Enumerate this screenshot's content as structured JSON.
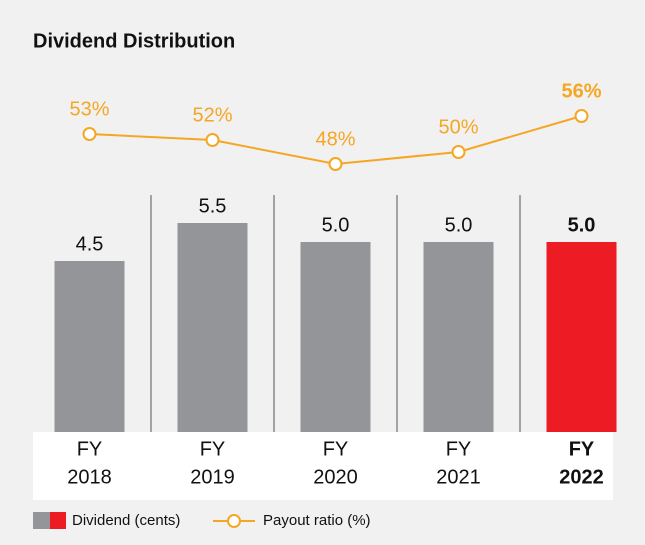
{
  "chart_data": {
    "type": "bar_line",
    "title": "Dividend Distribution",
    "categories": [
      [
        "FY",
        "2018"
      ],
      [
        "FY",
        "2019"
      ],
      [
        "FY",
        "2020"
      ],
      [
        "FY",
        "2021"
      ],
      [
        "FY",
        "2022"
      ]
    ],
    "series": [
      {
        "name": "Dividend (cents)",
        "type": "bar",
        "colors": [
          "#939598",
          "#939598",
          "#939598",
          "#939598",
          "#ed1c24"
        ],
        "values": [
          4.5,
          5.5,
          5.0,
          5.0,
          5.0
        ],
        "value_labels": [
          "4.5",
          "5.5",
          "5.0",
          "5.0",
          "5.0"
        ]
      },
      {
        "name": "Payout ratio (%)",
        "type": "line",
        "color": "#f5a623",
        "values": [
          53,
          52,
          48,
          50,
          56
        ],
        "value_labels": [
          "53%",
          "52%",
          "48%",
          "50%",
          "56%"
        ]
      }
    ]
  }
}
